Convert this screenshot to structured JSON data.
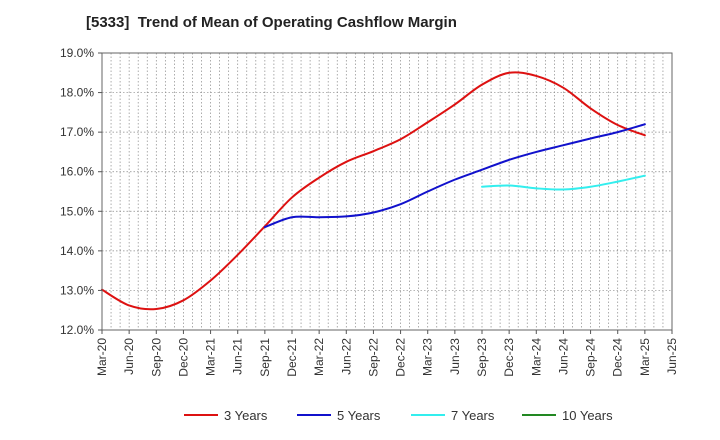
{
  "chart_data": {
    "type": "line",
    "title": "[5333]  Trend of Mean of Operating Cashflow Margin",
    "xlabel": "",
    "ylabel": "",
    "x_ticks": [
      "Mar-20",
      "Jun-20",
      "Sep-20",
      "Dec-20",
      "Mar-21",
      "Jun-21",
      "Sep-21",
      "Dec-21",
      "Mar-22",
      "Jun-22",
      "Sep-22",
      "Dec-22",
      "Mar-23",
      "Jun-23",
      "Sep-23",
      "Dec-23",
      "Mar-24",
      "Jun-24",
      "Sep-24",
      "Dec-24",
      "Mar-25",
      "Jun-25"
    ],
    "y_ticks": [
      "12.0%",
      "13.0%",
      "14.0%",
      "15.0%",
      "16.0%",
      "17.0%",
      "18.0%",
      "19.0%"
    ],
    "ylim": [
      12.0,
      19.0
    ],
    "grid": true,
    "legend_position": "bottom",
    "series": [
      {
        "name": "3 Years",
        "color": "#dd1111",
        "points": [
          [
            "Mar-20",
            13.02
          ],
          [
            "Jun-20",
            12.62
          ],
          [
            "Sep-20",
            12.53
          ],
          [
            "Dec-20",
            12.75
          ],
          [
            "Mar-21",
            13.25
          ],
          [
            "Jun-21",
            13.9
          ],
          [
            "Sep-21",
            14.62
          ],
          [
            "Dec-21",
            15.35
          ],
          [
            "Mar-22",
            15.85
          ],
          [
            "Jun-22",
            16.25
          ],
          [
            "Sep-22",
            16.52
          ],
          [
            "Dec-22",
            16.82
          ],
          [
            "Mar-23",
            17.25
          ],
          [
            "Jun-23",
            17.7
          ],
          [
            "Sep-23",
            18.2
          ],
          [
            "Dec-23",
            18.5
          ],
          [
            "Mar-24",
            18.42
          ],
          [
            "Jun-24",
            18.12
          ],
          [
            "Sep-24",
            17.6
          ],
          [
            "Dec-24",
            17.18
          ],
          [
            "Mar-25",
            16.92
          ]
        ]
      },
      {
        "name": "5 Years",
        "color": "#1111cc",
        "points": [
          [
            "Sep-21",
            14.6
          ],
          [
            "Dec-21",
            14.85
          ],
          [
            "Mar-22",
            14.85
          ],
          [
            "Jun-22",
            14.87
          ],
          [
            "Sep-22",
            14.97
          ],
          [
            "Dec-22",
            15.18
          ],
          [
            "Mar-23",
            15.5
          ],
          [
            "Jun-23",
            15.8
          ],
          [
            "Sep-23",
            16.05
          ],
          [
            "Dec-23",
            16.3
          ],
          [
            "Mar-24",
            16.5
          ],
          [
            "Jun-24",
            16.67
          ],
          [
            "Sep-24",
            16.84
          ],
          [
            "Dec-24",
            17.0
          ],
          [
            "Mar-25",
            17.2
          ]
        ]
      },
      {
        "name": "7 Years",
        "color": "#33eeee",
        "points": [
          [
            "Sep-23",
            15.62
          ],
          [
            "Dec-23",
            15.65
          ],
          [
            "Mar-24",
            15.58
          ],
          [
            "Jun-24",
            15.55
          ],
          [
            "Sep-24",
            15.62
          ],
          [
            "Dec-24",
            15.75
          ],
          [
            "Mar-25",
            15.9
          ]
        ]
      },
      {
        "name": "10 Years",
        "color": "#228822",
        "points": []
      }
    ]
  }
}
